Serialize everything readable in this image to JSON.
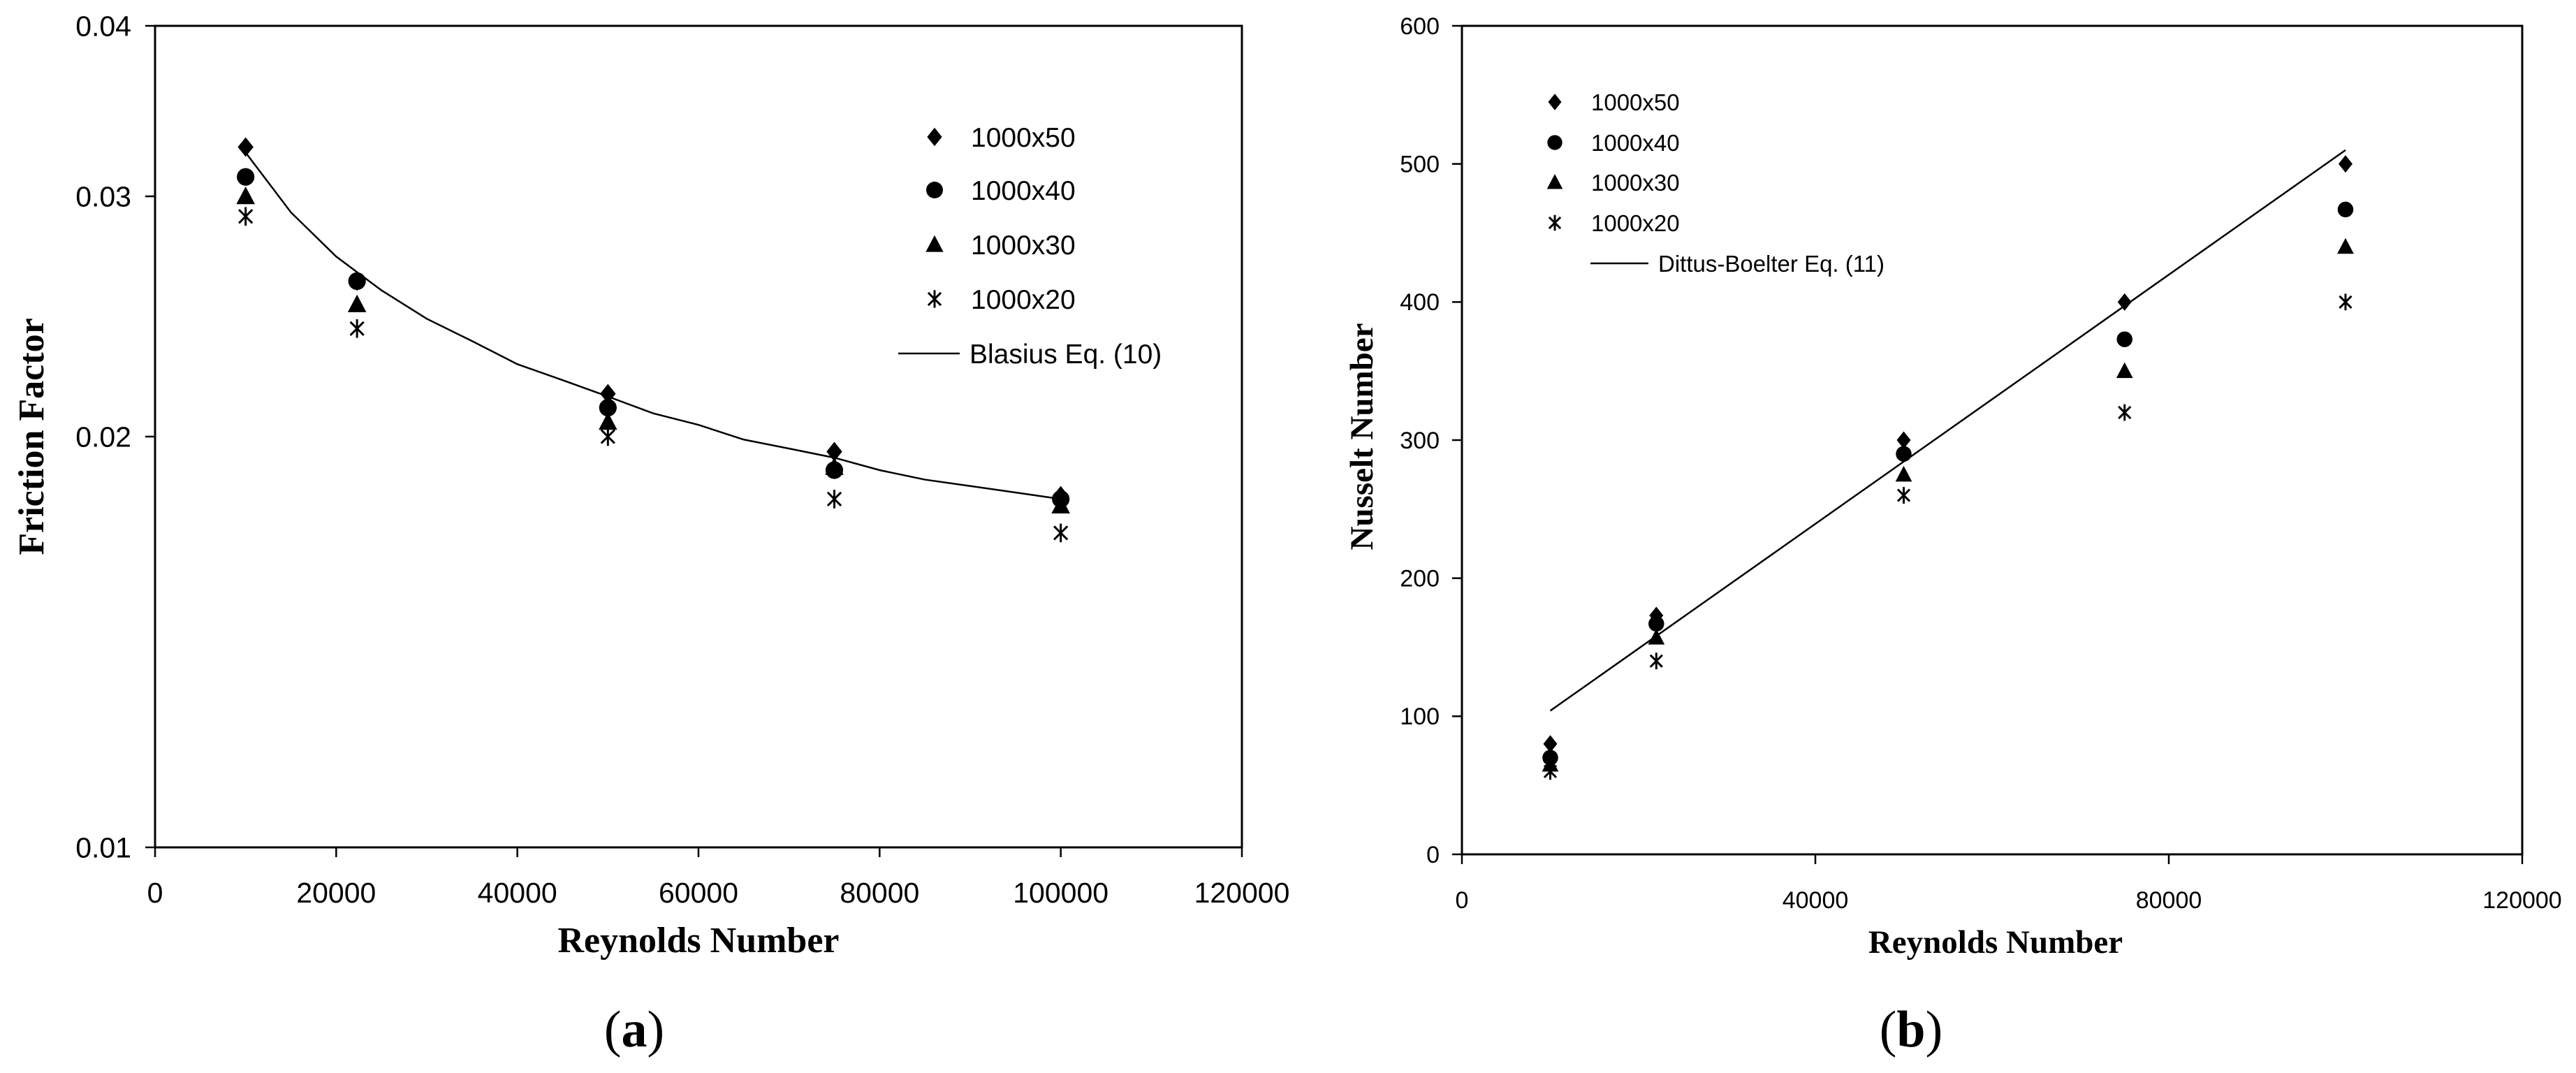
{
  "chart_data": [
    {
      "type": "scatter",
      "panel_label": "(a)",
      "panel_letter": "a",
      "xlabel": "Reynolds Number",
      "ylabel": "Friction Factor",
      "xlim": [
        0,
        120000
      ],
      "ylim": [
        0.01,
        0.04
      ],
      "y_scale": "log",
      "x_ticks": [
        "0",
        "20000",
        "40000",
        "60000",
        "80000",
        "100000",
        "120000"
      ],
      "y_ticks": [
        "0.01",
        "0.02",
        "0.03",
        "0.04"
      ],
      "grid": false,
      "legend_position": "top-right",
      "series": [
        {
          "name": "1000x50",
          "marker": "diamond",
          "x": [
            10000,
            22300,
            50000,
            75000,
            100000
          ],
          "y": [
            0.0326,
            0.026,
            0.0215,
            0.0195,
            0.0181
          ]
        },
        {
          "name": "1000x40",
          "marker": "circle",
          "x": [
            10000,
            22300,
            50000,
            75000,
            100000
          ],
          "y": [
            0.031,
            0.026,
            0.021,
            0.0189,
            0.018
          ]
        },
        {
          "name": "1000x30",
          "marker": "triangle",
          "x": [
            10000,
            22300,
            50000,
            75000,
            100000
          ],
          "y": [
            0.03,
            0.025,
            0.0205,
            0.019,
            0.0178
          ]
        },
        {
          "name": "1000x20",
          "marker": "asterisk",
          "x": [
            10000,
            22300,
            50000,
            75000,
            100000
          ],
          "y": [
            0.029,
            0.024,
            0.02,
            0.018,
            0.017
          ]
        },
        {
          "name": "Blasius Eq. (10)",
          "marker": "line",
          "x": [
            10000,
            15000,
            20000,
            25000,
            30000,
            35000,
            40000,
            45000,
            50000,
            55000,
            60000,
            65000,
            70000,
            75000,
            80000,
            85000,
            90000,
            95000,
            100000
          ],
          "y": [
            0.0323,
            0.0292,
            0.0271,
            0.0256,
            0.0244,
            0.0235,
            0.0226,
            0.022,
            0.0214,
            0.0208,
            0.0204,
            0.0199,
            0.0196,
            0.0193,
            0.0189,
            0.0186,
            0.0184,
            0.0182,
            0.018
          ]
        }
      ]
    },
    {
      "type": "scatter",
      "panel_label": "(b)",
      "panel_letter": "b",
      "xlabel": "Reynolds Number",
      "ylabel": "Nusselt Number",
      "xlim": [
        0,
        120000
      ],
      "ylim": [
        0,
        600
      ],
      "x_ticks": [
        "0",
        "40000",
        "80000",
        "120000"
      ],
      "y_ticks": [
        "0",
        "100",
        "200",
        "300",
        "400",
        "500",
        "600"
      ],
      "grid": false,
      "legend_position": "top-left",
      "series": [
        {
          "name": "1000x50",
          "marker": "diamond",
          "x": [
            10000,
            22000,
            50000,
            75000,
            100000
          ],
          "y": [
            80,
            173,
            300,
            400,
            500
          ]
        },
        {
          "name": "1000x40",
          "marker": "circle",
          "x": [
            10000,
            22000,
            50000,
            75000,
            100000
          ],
          "y": [
            70,
            167,
            290,
            373,
            467
          ]
        },
        {
          "name": "1000x30",
          "marker": "triangle",
          "x": [
            10000,
            22000,
            50000,
            75000,
            100000
          ],
          "y": [
            65,
            157,
            275,
            350,
            440
          ]
        },
        {
          "name": "1000x20",
          "marker": "asterisk",
          "x": [
            10000,
            22000,
            50000,
            75000,
            100000
          ],
          "y": [
            60,
            140,
            260,
            320,
            400
          ]
        },
        {
          "name": "Dittus-Boelter Eq. (11)",
          "marker": "line",
          "x": [
            10000,
            100000
          ],
          "y": [
            104,
            510
          ]
        }
      ]
    }
  ]
}
